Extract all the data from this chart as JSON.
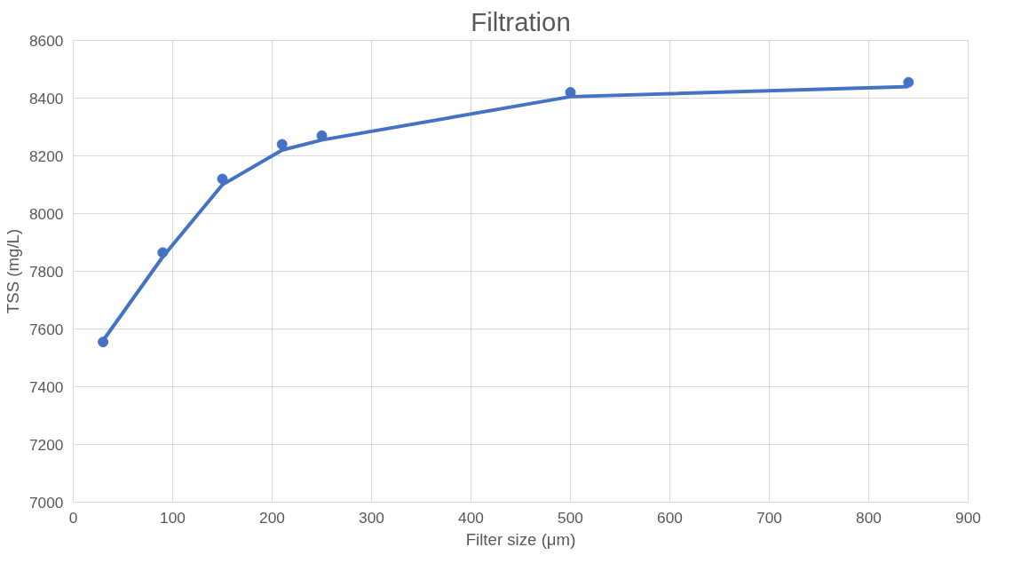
{
  "chart_data": {
    "type": "scatter",
    "title": "Filtration",
    "xlabel": "Filter size (μm)",
    "ylabel": "TSS (mg/L)",
    "xlim": [
      0,
      900
    ],
    "xticks": [
      0,
      100,
      200,
      300,
      400,
      500,
      600,
      700,
      800,
      900
    ],
    "ylim": [
      7000,
      8600
    ],
    "yticks": [
      7000,
      7200,
      7400,
      7600,
      7800,
      8000,
      8200,
      8400,
      8600
    ],
    "grid": true,
    "marker": "circle",
    "series": [
      {
        "color": "#4472c4",
        "x": [
          30,
          90,
          150,
          210,
          250,
          500,
          840
        ],
        "values": [
          7555,
          7865,
          8120,
          8240,
          8270,
          8420,
          8455
        ]
      },
      {
        "type": "line",
        "color": "#4472c4",
        "marker": "none",
        "line_style": "solid",
        "x": [
          30,
          90,
          150,
          210,
          250,
          500,
          840
        ],
        "values": [
          7560,
          7850,
          8100,
          8220,
          8255,
          8405,
          8440
        ]
      }
    ]
  }
}
